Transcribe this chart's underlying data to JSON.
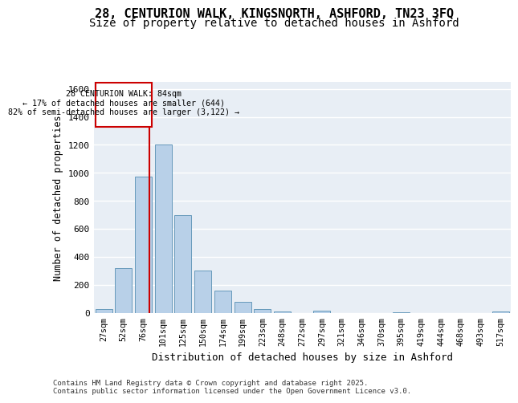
{
  "title_line1": "28, CENTURION WALK, KINGSNORTH, ASHFORD, TN23 3FQ",
  "title_line2": "Size of property relative to detached houses in Ashford",
  "xlabel": "Distribution of detached houses by size in Ashford",
  "ylabel": "Number of detached properties",
  "categories": [
    "27sqm",
    "52sqm",
    "76sqm",
    "101sqm",
    "125sqm",
    "150sqm",
    "174sqm",
    "199sqm",
    "223sqm",
    "248sqm",
    "272sqm",
    "297sqm",
    "321sqm",
    "346sqm",
    "370sqm",
    "395sqm",
    "419sqm",
    "444sqm",
    "468sqm",
    "493sqm",
    "517sqm"
  ],
  "values": [
    25,
    320,
    970,
    1200,
    700,
    300,
    160,
    75,
    25,
    10,
    0,
    15,
    0,
    0,
    0,
    5,
    0,
    0,
    0,
    0,
    10
  ],
  "bar_color": "#b8d0e8",
  "bar_edge_color": "#6699bb",
  "annotation_title": "28 CENTURION WALK: 84sqm",
  "annotation_line2": "← 17% of detached houses are smaller (644)",
  "annotation_line3": "82% of semi-detached houses are larger (3,122) →",
  "annotation_box_edge": "#cc0000",
  "ylim": [
    0,
    1650
  ],
  "yticks": [
    0,
    200,
    400,
    600,
    800,
    1000,
    1200,
    1400,
    1600
  ],
  "bg_color": "#e8eef5",
  "footer_line1": "Contains HM Land Registry data © Crown copyright and database right 2025.",
  "footer_line2": "Contains public sector information licensed under the Open Government Licence v3.0.",
  "title_fontsize": 11,
  "subtitle_fontsize": 10,
  "red_line_index": 2.32
}
